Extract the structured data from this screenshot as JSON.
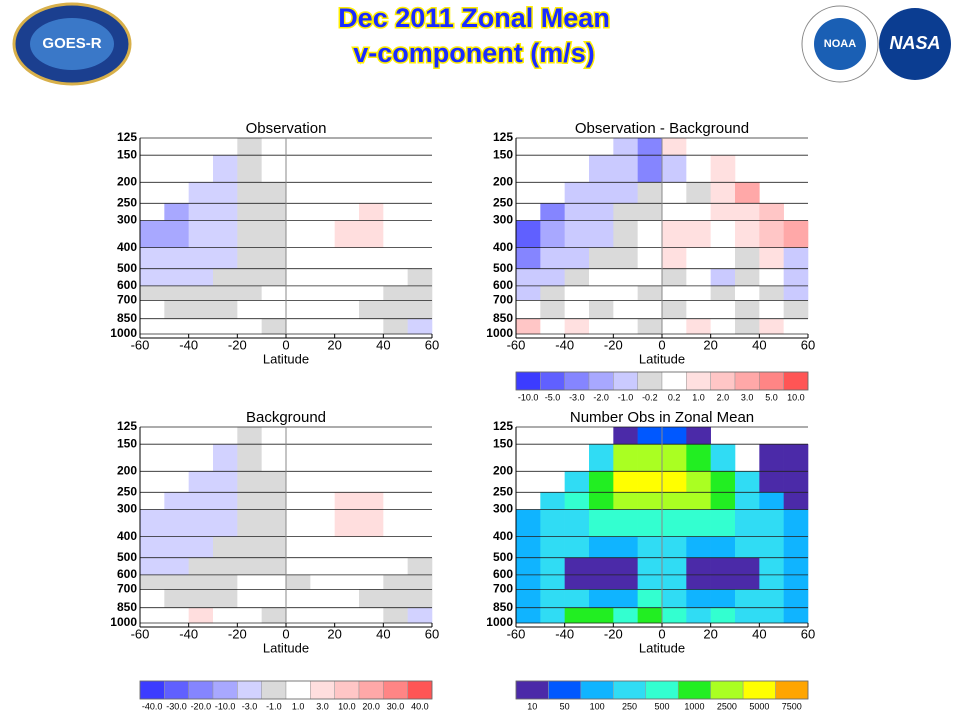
{
  "header": {
    "title": [
      "Dec 2011 Zonal Mean",
      "v-component (m/s)"
    ],
    "logos": [
      "GOES-R",
      "NOAA",
      "NASA"
    ]
  },
  "chart_data": [
    {
      "type": "heatmap",
      "title": "Observation",
      "xlabel": "Latitude",
      "xlim": [
        -60,
        60
      ],
      "xticks": [
        -60,
        -40,
        -20,
        0,
        20,
        40,
        60
      ],
      "ylim": [
        1000,
        125
      ],
      "ylog": true,
      "yticks": [
        125,
        150,
        200,
        250,
        300,
        400,
        500,
        600,
        700,
        850,
        1000
      ],
      "grid": true,
      "x_bins": [
        -60,
        -50,
        -40,
        -30,
        -20,
        -10,
        0,
        10,
        20,
        30,
        40,
        50,
        60
      ],
      "y_bins": [
        125,
        150,
        200,
        250,
        300,
        400,
        500,
        600,
        700,
        850,
        1000
      ],
      "values": [
        [
          null,
          null,
          null,
          null,
          -1,
          1,
          1,
          1,
          null,
          null,
          null,
          null
        ],
        [
          null,
          null,
          null,
          -3,
          -1,
          1,
          1,
          1,
          1,
          null,
          null,
          null
        ],
        [
          null,
          null,
          -3,
          -3,
          -1,
          -1,
          1,
          1,
          1,
          1,
          null,
          null
        ],
        [
          null,
          -10,
          -3,
          -3,
          -1,
          -1,
          1,
          1,
          1,
          3,
          1,
          null
        ],
        [
          -10,
          -10,
          -3,
          -3,
          -1,
          -1,
          1,
          1,
          3,
          3,
          1,
          1
        ],
        [
          -3,
          -3,
          -3,
          -3,
          -1,
          -1,
          1,
          1,
          1,
          1,
          1,
          1
        ],
        [
          -3,
          -3,
          -3,
          -1,
          -1,
          -1,
          1,
          1,
          1,
          1,
          1,
          -1
        ],
        [
          -1,
          -1,
          -1,
          -1,
          -1,
          1,
          1,
          1,
          1,
          1,
          -1,
          -1
        ],
        [
          1,
          -1,
          -1,
          -1,
          1,
          1,
          1,
          1,
          1,
          -1,
          -1,
          -1
        ],
        [
          1,
          1,
          1,
          1,
          1,
          -1,
          1,
          1,
          1,
          1,
          -1,
          -3
        ]
      ]
    },
    {
      "type": "heatmap",
      "title": "Observation - Background",
      "xlabel": "Latitude",
      "xlim": [
        -60,
        60
      ],
      "xticks": [
        -60,
        -40,
        -20,
        0,
        20,
        40,
        60
      ],
      "ylim": [
        1000,
        125
      ],
      "ylog": true,
      "yticks": [
        125,
        150,
        200,
        250,
        300,
        400,
        500,
        600,
        700,
        850,
        1000
      ],
      "grid": true,
      "x_bins": [
        -60,
        -50,
        -40,
        -30,
        -20,
        -10,
        0,
        10,
        20,
        30,
        40,
        50,
        60
      ],
      "y_bins": [
        125,
        150,
        200,
        250,
        300,
        400,
        500,
        600,
        700,
        850,
        1000
      ],
      "values": [
        [
          null,
          null,
          null,
          null,
          -1,
          -3,
          1,
          0.2,
          null,
          null,
          null,
          null
        ],
        [
          null,
          null,
          null,
          -1,
          -1,
          -3,
          -1,
          0.2,
          1,
          null,
          null,
          null
        ],
        [
          null,
          null,
          -1,
          -1,
          -1,
          -0.2,
          0.2,
          -0.2,
          1,
          3,
          null,
          null
        ],
        [
          null,
          -3,
          -1,
          -1,
          -0.2,
          -0.2,
          0.2,
          0.2,
          1,
          1,
          2,
          null
        ],
        [
          -5,
          -2,
          -1,
          -1,
          -0.2,
          0.2,
          1,
          1,
          0.2,
          1,
          2,
          3
        ],
        [
          -3,
          -1,
          -1,
          -0.2,
          -0.2,
          0.2,
          1,
          0.2,
          0.2,
          -0.2,
          1,
          -1
        ],
        [
          -1,
          -1,
          -0.2,
          0.2,
          0.2,
          0.2,
          -0.2,
          0.2,
          -1,
          -0.2,
          0.2,
          -1
        ],
        [
          -1,
          -0.2,
          0.2,
          0.2,
          0.2,
          -0.2,
          0.2,
          0.2,
          -0.2,
          0.2,
          -0.2,
          -1
        ],
        [
          0.2,
          -0.2,
          0.2,
          -0.2,
          0.2,
          0.2,
          -0.2,
          0.2,
          0.2,
          -0.2,
          0.2,
          -0.2
        ],
        [
          2,
          0.2,
          1,
          0.2,
          0.2,
          -0.2,
          0.2,
          1,
          0.2,
          -0.2,
          1,
          0.2
        ]
      ],
      "colorbar": {
        "labels": [
          {
            "value": -10,
            "label": "-10.0"
          },
          {
            "value": -5,
            "label": "-5.0"
          },
          {
            "value": -3,
            "label": "-3.0"
          },
          {
            "value": -2,
            "label": "-2.0"
          },
          {
            "value": -1,
            "label": "-1.0"
          },
          -0.2,
          0.2,
          {
            "value": 1,
            "label": "1.0"
          },
          {
            "value": 2,
            "label": "2.0"
          },
          {
            "value": 3,
            "label": "3.0"
          },
          {
            "value": 5,
            "label": "5.0"
          },
          {
            "value": 10,
            "label": "10.0"
          }
        ],
        "colors": [
          "#3c3cff",
          "#6060ff",
          "#8585ff",
          "#a8a8ff",
          "#cacaff",
          "#dadada",
          "#ffffff",
          "#ffe0e0",
          "#ffc6c6",
          "#ffa8a8",
          "#ff8585",
          "#ff5555"
        ]
      }
    },
    {
      "type": "heatmap",
      "title": "Background",
      "xlabel": "Latitude",
      "xlim": [
        -60,
        60
      ],
      "xticks": [
        -60,
        -40,
        -20,
        0,
        20,
        40,
        60
      ],
      "ylim": [
        1000,
        125
      ],
      "ylog": true,
      "yticks": [
        125,
        150,
        200,
        250,
        300,
        400,
        500,
        600,
        700,
        850,
        1000
      ],
      "grid": true,
      "x_bins": [
        -60,
        -50,
        -40,
        -30,
        -20,
        -10,
        0,
        10,
        20,
        30,
        40,
        50,
        60
      ],
      "y_bins": [
        125,
        150,
        200,
        250,
        300,
        400,
        500,
        600,
        700,
        850,
        1000
      ],
      "values": [
        [
          null,
          null,
          null,
          null,
          -1,
          1,
          1,
          1,
          null,
          null,
          null,
          null
        ],
        [
          null,
          null,
          null,
          -3,
          -1,
          1,
          1,
          1,
          1,
          null,
          null,
          null
        ],
        [
          null,
          null,
          -3,
          -3,
          -1,
          -1,
          1,
          1,
          1,
          1,
          null,
          null
        ],
        [
          null,
          -3,
          -3,
          -3,
          -1,
          -1,
          1,
          1,
          3,
          3,
          1,
          null
        ],
        [
          -3,
          -3,
          -3,
          -3,
          -1,
          -1,
          1,
          1,
          3,
          3,
          1,
          1
        ],
        [
          -3,
          -3,
          -3,
          -1,
          -1,
          -1,
          1,
          1,
          1,
          1,
          1,
          1
        ],
        [
          -3,
          -3,
          -1,
          -1,
          -1,
          -1,
          1,
          1,
          1,
          1,
          1,
          -1
        ],
        [
          -1,
          -1,
          -1,
          -1,
          1,
          1,
          -1,
          1,
          1,
          1,
          -1,
          -1
        ],
        [
          1,
          -1,
          -1,
          -1,
          1,
          1,
          1,
          1,
          1,
          -1,
          -1,
          -1
        ],
        [
          1,
          1,
          3,
          1,
          1,
          -1,
          1,
          1,
          1,
          1,
          -1,
          -3
        ]
      ],
      "colorbar": {
        "labels": [
          {
            "value": -40,
            "label": "-40.0"
          },
          {
            "value": -30,
            "label": "-30.0"
          },
          {
            "value": -20,
            "label": "-20.0"
          },
          {
            "value": -10,
            "label": "-10.0"
          },
          {
            "value": -3,
            "label": "-3.0"
          },
          {
            "value": -1,
            "label": "-1.0"
          },
          {
            "value": 1,
            "label": "1.0"
          },
          {
            "value": 3,
            "label": "3.0"
          },
          {
            "value": 10,
            "label": "10.0"
          },
          {
            "value": 20,
            "label": "20.0"
          },
          {
            "value": 30,
            "label": "30.0"
          },
          {
            "value": 40,
            "label": "40.0"
          }
        ],
        "colors": [
          "#3c3cff",
          "#6060ff",
          "#8585ff",
          "#a8a8ff",
          "#d2d2ff",
          "#dadada",
          "#ffffff",
          "#ffdede",
          "#ffc6c6",
          "#ffa8a8",
          "#ff8585",
          "#ff5555"
        ]
      }
    },
    {
      "type": "heatmap",
      "title": "Number Obs in Zonal Mean",
      "xlabel": "Latitude",
      "xlim": [
        -60,
        60
      ],
      "xticks": [
        -60,
        -40,
        -20,
        0,
        20,
        40,
        60
      ],
      "ylim": [
        1000,
        125
      ],
      "ylog": true,
      "yticks": [
        125,
        150,
        200,
        250,
        300,
        400,
        500,
        600,
        700,
        850,
        1000
      ],
      "grid": true,
      "x_bins": [
        -60,
        -50,
        -40,
        -30,
        -20,
        -10,
        0,
        10,
        20,
        30,
        40,
        50,
        60
      ],
      "y_bins": [
        125,
        150,
        200,
        250,
        300,
        400,
        500,
        600,
        700,
        850,
        1000
      ],
      "values": [
        [
          null,
          null,
          null,
          null,
          10,
          50,
          50,
          10,
          null,
          null,
          null,
          null
        ],
        [
          null,
          null,
          null,
          250,
          2500,
          2500,
          2500,
          1000,
          250,
          null,
          10,
          10
        ],
        [
          null,
          null,
          250,
          1000,
          5000,
          5000,
          5000,
          2500,
          1000,
          250,
          10,
          10
        ],
        [
          null,
          250,
          500,
          1000,
          2500,
          2500,
          2500,
          2500,
          1000,
          250,
          100,
          10
        ],
        [
          100,
          250,
          250,
          500,
          500,
          500,
          500,
          500,
          500,
          250,
          250,
          100
        ],
        [
          100,
          250,
          250,
          100,
          100,
          250,
          250,
          100,
          100,
          250,
          250,
          100
        ],
        [
          100,
          250,
          10,
          10,
          10,
          250,
          250,
          10,
          10,
          10,
          250,
          100
        ],
        [
          100,
          250,
          10,
          10,
          10,
          250,
          250,
          10,
          10,
          10,
          250,
          100
        ],
        [
          100,
          250,
          250,
          100,
          100,
          500,
          250,
          100,
          100,
          250,
          250,
          100
        ],
        [
          100,
          250,
          1000,
          1000,
          500,
          1000,
          500,
          250,
          500,
          250,
          250,
          100
        ]
      ],
      "colorbar": {
        "labels": [
          10,
          50,
          100,
          250,
          500,
          1000,
          2500,
          5000,
          7500
        ],
        "colors": [
          "#4b2aa8",
          "#0058ff",
          "#10b4ff",
          "#30dcf4",
          "#33ffd0",
          "#22ee22",
          "#aaff22",
          "#ffff00",
          "#ffa500"
        ]
      }
    }
  ]
}
